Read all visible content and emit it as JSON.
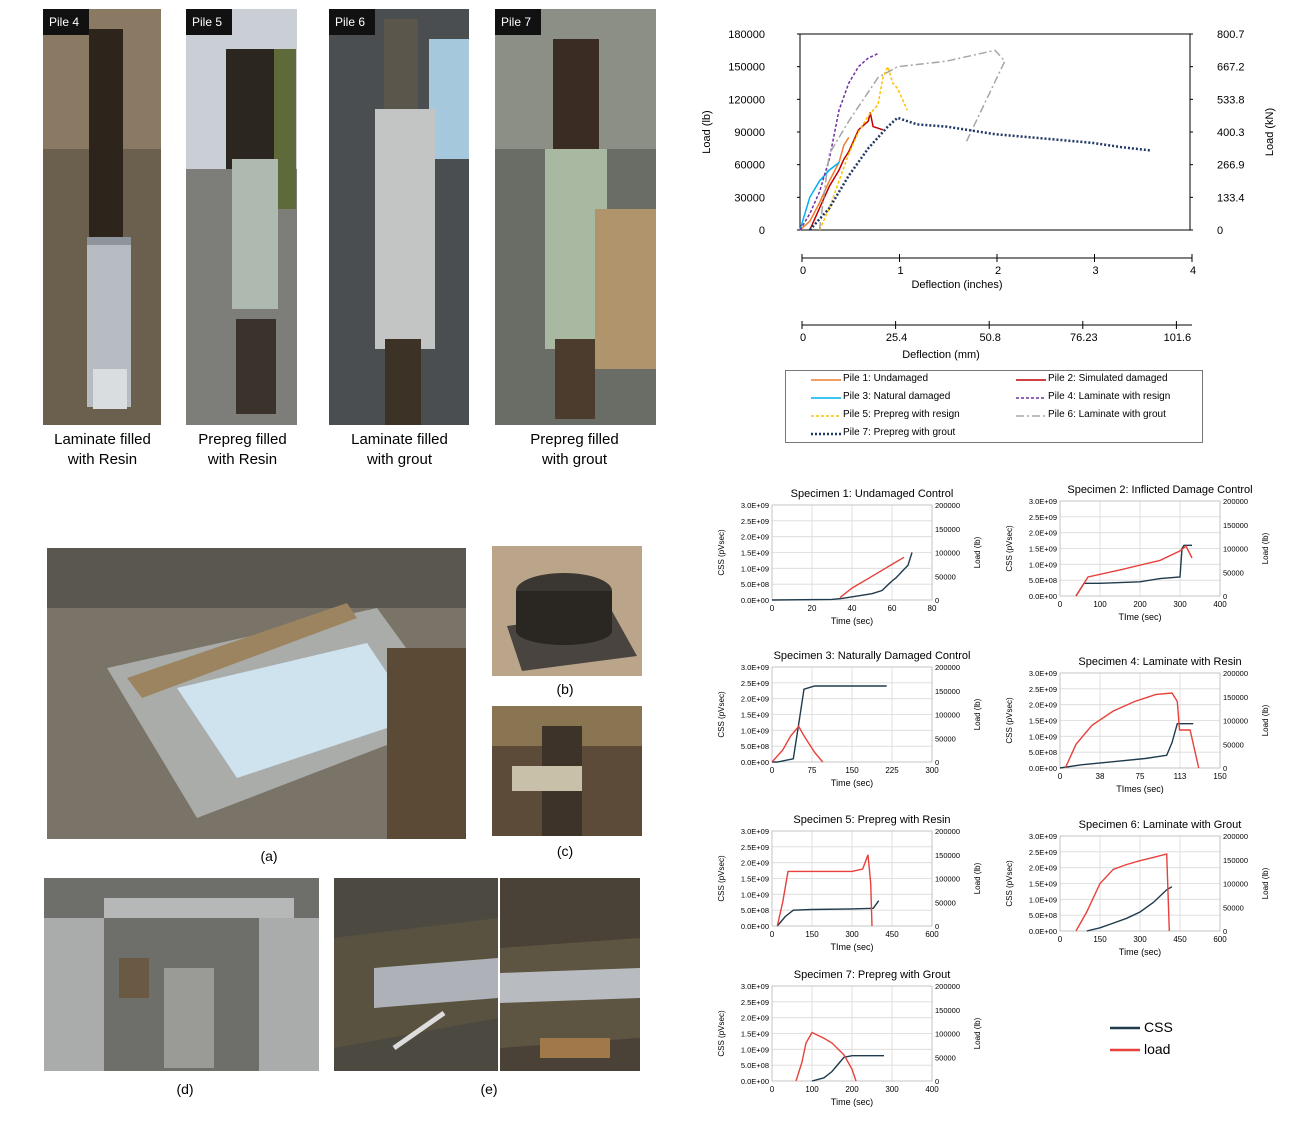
{
  "piles": [
    {
      "tag": "Pile 4",
      "caption_l1": "Laminate filled",
      "caption_l2": "with Resin"
    },
    {
      "tag": "Pile 5",
      "caption_l1": "Prepreg filled",
      "caption_l2": "with Resin"
    },
    {
      "tag": "Pile 6",
      "caption_l1": "Laminate filled",
      "caption_l2": "with grout"
    },
    {
      "tag": "Pile 7",
      "caption_l1": "Prepreg filled",
      "caption_l2": "with grout"
    }
  ],
  "sublabels": {
    "a": "(a)",
    "b": "(b)",
    "c": "(c)",
    "d": "(d)",
    "e": "(e)"
  },
  "main_chart": {
    "ylabel_left": "Load (lb)",
    "ylabel_right": "Load (kN)",
    "xlabel_in": "Deflection (inches)",
    "xlabel_mm": "Deflection (mm)",
    "yticks_lb": [
      "180000",
      "150000",
      "120000",
      "90000",
      "60000",
      "30000",
      "0"
    ],
    "yticks_kn": [
      "800.7",
      "667.2",
      "533.8",
      "400.3",
      "266.9",
      "133.4",
      "0"
    ],
    "xticks_in": [
      "0",
      "1",
      "2",
      "3",
      "4"
    ],
    "xticks_mm": [
      "0",
      "25.4",
      "50.8",
      "76.23",
      "101.6"
    ],
    "legend": [
      {
        "label": "Pile 1: Undamaged",
        "color": "#ed7d31",
        "dash": ""
      },
      {
        "label": "Pile 2: Simulated damaged",
        "color": "#c00000",
        "dash": ""
      },
      {
        "label": "Pile 3: Natural damaged",
        "color": "#00b0f0",
        "dash": ""
      },
      {
        "label": "Pile 4: Laminate with resign",
        "color": "#7030a0",
        "dash": "3,2"
      },
      {
        "label": "Pile 5: Prepreg with resign",
        "color": "#ffc000",
        "dash": "3,2"
      },
      {
        "label": "Pile 6: Laminate with grout",
        "color": "#a5a5a5",
        "dash": "8,3,2,3"
      },
      {
        "label": "Pile 7: Prepreg with grout",
        "color": "#203864",
        "dash": "2,2"
      }
    ]
  },
  "chart_data": [
    {
      "type": "line",
      "xlabel": "Deflection (inches)",
      "ylabel": "Load (lb)",
      "xlim": [
        0,
        4
      ],
      "ylim": [
        0,
        180000
      ],
      "series": [
        {
          "name": "Pile 1: Undamaged",
          "x": [
            0.0,
            0.1,
            0.2,
            0.3,
            0.4,
            0.45,
            0.5
          ],
          "y": [
            0,
            8000,
            25000,
            45000,
            62000,
            78000,
            85000
          ]
        },
        {
          "name": "Pile 2: Simulated damaged",
          "x": [
            0.1,
            0.2,
            0.3,
            0.4,
            0.45,
            0.5,
            0.6,
            0.7,
            0.72,
            0.75,
            0.85
          ],
          "y": [
            0,
            20000,
            40000,
            55000,
            65000,
            72000,
            92000,
            100000,
            108000,
            95000,
            92000
          ]
        },
        {
          "name": "Pile 3: Natural damaged",
          "x": [
            0.0,
            0.05,
            0.1,
            0.2,
            0.3,
            0.4
          ],
          "y": [
            0,
            15000,
            30000,
            45000,
            55000,
            62000
          ]
        },
        {
          "name": "Pile 4: Laminate with resign",
          "x": [
            0.0,
            0.1,
            0.2,
            0.3,
            0.4,
            0.5,
            0.6,
            0.7,
            0.8
          ],
          "y": [
            0,
            15000,
            35000,
            65000,
            110000,
            135000,
            150000,
            158000,
            162000
          ]
        },
        {
          "name": "Pile 5: Prepreg with resign",
          "x": [
            0.2,
            0.3,
            0.4,
            0.5,
            0.6,
            0.7,
            0.8,
            0.85,
            0.9,
            0.95,
            1.0,
            1.05,
            1.1
          ],
          "y": [
            0,
            20000,
            45000,
            70000,
            90000,
            105000,
            115000,
            140000,
            150000,
            135000,
            130000,
            120000,
            110000
          ]
        },
        {
          "name": "Pile 6: Laminate with grout",
          "x": [
            0.2,
            0.3,
            0.5,
            0.8,
            0.9,
            1.0,
            1.5,
            2.0,
            2.1,
            1.7
          ],
          "y": [
            0,
            70000,
            100000,
            140000,
            145000,
            150000,
            155000,
            165000,
            155000,
            80000
          ]
        },
        {
          "name": "Pile 7: Prepreg with grout",
          "x": [
            0.1,
            0.3,
            0.5,
            0.7,
            0.9,
            1.0,
            1.2,
            1.5,
            2.0,
            2.5,
            3.0,
            3.3,
            3.6
          ],
          "y": [
            0,
            20000,
            50000,
            75000,
            95000,
            103000,
            97000,
            95000,
            88000,
            84000,
            80000,
            76000,
            73000
          ]
        }
      ]
    },
    {
      "type": "line",
      "title": "Specimen 1: Undamaged Control",
      "xlabel": "Time (sec)",
      "ylabel": "CSS (pVsec)",
      "ylabel_right": "Load (lb)",
      "xlim": [
        0,
        80
      ],
      "ylim": [
        0,
        3000000000.0
      ],
      "ylim_right": [
        0,
        200000
      ],
      "series": [
        {
          "name": "CSS",
          "x": [
            0,
            30,
            35,
            50,
            55,
            60,
            62,
            65,
            68,
            70
          ],
          "y": [
            0,
            20000000.0,
            50000000.0,
            200000000.0,
            300000000.0,
            600000000.0,
            700000000.0,
            900000000.0,
            1100000000.0,
            1500000000.0
          ]
        },
        {
          "name": "load",
          "x": [
            34,
            40,
            50,
            60,
            66
          ],
          "y": [
            5000,
            25000,
            50000,
            75000,
            90000
          ]
        }
      ]
    },
    {
      "type": "line",
      "title": "Specimen 2: Inflicted Damage Control",
      "xlabel": "TIme (sec)",
      "ylabel": "CSS (pVsec)",
      "ylabel_right": "Load (lb)",
      "xlim": [
        0,
        400
      ],
      "ylim": [
        0,
        3000000000.0
      ],
      "ylim_right": [
        0,
        200000
      ],
      "series": [
        {
          "name": "CSS",
          "x": [
            40,
            55,
            60,
            100,
            200,
            250,
            300,
            305,
            310,
            330
          ],
          "y": [
            0,
            300000000.0,
            400000000.0,
            400000000.0,
            450000000.0,
            550000000.0,
            600000000.0,
            1500000000.0,
            1600000000.0,
            1600000000.0
          ]
        },
        {
          "name": "load",
          "x": [
            40,
            55,
            70,
            150,
            250,
            300,
            315,
            330
          ],
          "y": [
            0,
            20000,
            40000,
            55000,
            75000,
            95000,
            105000,
            80000
          ]
        }
      ]
    },
    {
      "type": "line",
      "title": "Specimen 3: Naturally Damaged Control",
      "xlabel": "Time (sec)",
      "ylabel": "CSS (pVsec)",
      "ylabel_right": "Load (lb)",
      "xlim": [
        0,
        300
      ],
      "ylim": [
        0,
        3000000000.0
      ],
      "ylim_right": [
        0,
        200000
      ],
      "series": [
        {
          "name": "CSS",
          "x": [
            0,
            10,
            40,
            50,
            60,
            80,
            150,
            215
          ],
          "y": [
            0,
            0,
            100000000.0,
            1200000000.0,
            2300000000.0,
            2400000000.0,
            2400000000.0,
            2400000000.0
          ]
        },
        {
          "name": "load",
          "x": [
            0,
            20,
            35,
            50,
            60,
            80,
            95
          ],
          "y": [
            0,
            25000,
            55000,
            75000,
            55000,
            20000,
            0
          ]
        }
      ]
    },
    {
      "type": "line",
      "title": "Specimen 4: Laminate with  Resin",
      "xlabel": "TImes (sec)",
      "ylabel": "CSS (pVsec)",
      "ylabel_right": "Load (lb)",
      "xlim": [
        0,
        150
      ],
      "ylim": [
        0,
        3000000000.0
      ],
      "ylim_right": [
        0,
        200000
      ],
      "series": [
        {
          "name": "CSS",
          "x": [
            0,
            20,
            50,
            80,
            100,
            105,
            110,
            115,
            125
          ],
          "y": [
            0,
            100000000.0,
            200000000.0,
            300000000.0,
            400000000.0,
            800000000.0,
            1400000000.0,
            1400000000.0,
            1400000000.0
          ]
        },
        {
          "name": "load",
          "x": [
            5,
            15,
            30,
            50,
            70,
            90,
            105,
            110,
            112,
            122,
            130
          ],
          "y": [
            0,
            50000,
            90000,
            120000,
            140000,
            155000,
            158000,
            140000,
            80000,
            80000,
            0
          ]
        }
      ]
    },
    {
      "type": "line",
      "title": "Specimen 5: Prepreg with Resin",
      "xlabel": "TIme (sec)",
      "ylabel": "CSS (pVsec)",
      "ylabel_right": "Load (lb)",
      "xlim": [
        0,
        600
      ],
      "ylim": [
        0,
        3000000000.0
      ],
      "ylim_right": [
        0,
        200000
      ],
      "series": [
        {
          "name": "CSS",
          "x": [
            20,
            50,
            80,
            150,
            300,
            380,
            400
          ],
          "y": [
            0,
            300000000.0,
            500000000.0,
            520000000.0,
            540000000.0,
            560000000.0,
            800000000.0
          ]
        },
        {
          "name": "load",
          "x": [
            20,
            40,
            60,
            150,
            300,
            340,
            360,
            370,
            375
          ],
          "y": [
            0,
            50000,
            115000,
            115000,
            115000,
            120000,
            150000,
            90000,
            0
          ]
        }
      ]
    },
    {
      "type": "line",
      "title": "Specimen 6: Laminate with Grout",
      "xlabel": "Time (sec)",
      "ylabel": "CSS (pVsec)",
      "ylabel_right": "Load (lb)",
      "xlim": [
        0,
        600
      ],
      "ylim": [
        0,
        3000000000.0
      ],
      "ylim_right": [
        0,
        200000
      ],
      "series": [
        {
          "name": "CSS",
          "x": [
            100,
            150,
            200,
            250,
            300,
            350,
            400,
            420
          ],
          "y": [
            0,
            100000000.0,
            250000000.0,
            400000000.0,
            600000000.0,
            900000000.0,
            1300000000.0,
            1400000000.0
          ]
        },
        {
          "name": "load",
          "x": [
            60,
            100,
            150,
            200,
            250,
            300,
            350,
            400,
            410
          ],
          "y": [
            0,
            40000,
            100000,
            130000,
            140000,
            148000,
            155000,
            162000,
            0
          ]
        }
      ]
    },
    {
      "type": "line",
      "title": "Specimen 7: Prepreg with Grout",
      "xlabel": "Time (sec)",
      "ylabel": "CSS (pVsec)",
      "ylabel_right": "Load (lb)",
      "xlim": [
        0,
        400
      ],
      "ylim": [
        0,
        3000000000.0
      ],
      "ylim_right": [
        0,
        200000
      ],
      "series": [
        {
          "name": "CSS",
          "x": [
            100,
            130,
            150,
            170,
            180,
            200,
            280
          ],
          "y": [
            0,
            100000000.0,
            300000000.0,
            600000000.0,
            750000000.0,
            800000000.0,
            800000000.0
          ]
        },
        {
          "name": "load",
          "x": [
            60,
            75,
            85,
            100,
            130,
            150,
            180,
            200,
            210
          ],
          "y": [
            0,
            40000,
            80000,
            102000,
            90000,
            80000,
            55000,
            25000,
            0
          ]
        }
      ]
    }
  ],
  "css_legend": {
    "css": "CSS",
    "load": "load",
    "css_color": "#1f3b4d",
    "load_color": "#e8403b"
  },
  "small_axes": {
    "yticks": [
      "3.0E+09",
      "2.5E+09",
      "2.0E+09",
      "1.5E+09",
      "1.0E+09",
      "5.0E+08",
      "0.0E+00"
    ],
    "yticks_right": [
      "200000",
      "150000",
      "100000",
      "50000",
      "0"
    ]
  }
}
